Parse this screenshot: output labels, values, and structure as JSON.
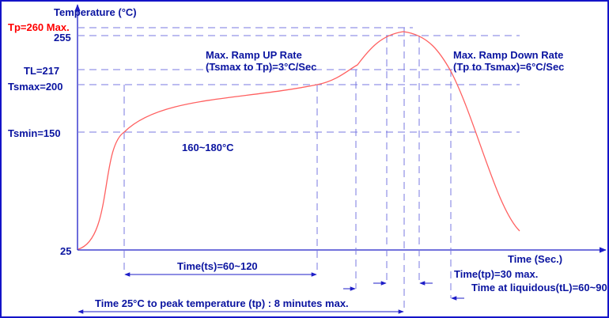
{
  "axis": {
    "y_title": "Temperature (°C)",
    "x_title": "Time (Sec.)"
  },
  "temperature_labels": {
    "tp": "Tp=260 Max.",
    "t255": "255",
    "tl": "TL=217",
    "tsmax": "Tsmax=200",
    "tsmin": "Tsmin=150",
    "t25": "25"
  },
  "annotations": {
    "ramp_up_1": "Max. Ramp UP Rate",
    "ramp_up_2": "(Tsmax to Tp)=3°C/Sec",
    "ramp_down_1": "Max. Ramp Down Rate",
    "ramp_down_2": "(Tp to Tsmax)=6°C/Sec",
    "soak_range": "160~180°C"
  },
  "time_labels": {
    "ts": "Time(ts)=60~120",
    "tp": "Time(tp)=30 max.",
    "tl": "Time at liquidous(tL)=60~90",
    "total": "Time 25°C to peak temperature (tp) : 8 minutes max."
  },
  "colors": {
    "frame": "#1414c8",
    "label": "#0a14a0",
    "peak_label": "#ff0000",
    "curve": "#ff6060",
    "guide": "#7a7ae0",
    "dim": "#1e1ec8"
  }
}
